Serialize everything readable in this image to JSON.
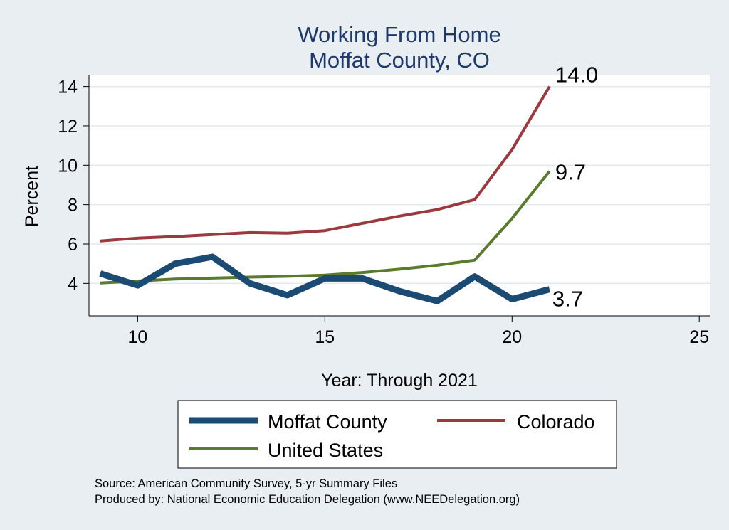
{
  "chart_data": {
    "type": "line",
    "title": [
      "Working From Home",
      "Moffat County, CO"
    ],
    "xlabel": "Year: Through 2021",
    "ylabel": "Percent",
    "xlim": [
      8.7,
      25.3
    ],
    "ylim": [
      2.35,
      14.6
    ],
    "xticks": [
      10,
      15,
      20,
      25
    ],
    "yticks": [
      4,
      6,
      8,
      10,
      12,
      14
    ],
    "grid": true,
    "legend_position": "bottom",
    "series": [
      {
        "name": "Moffat County",
        "color": "#1b4a72",
        "x": [
          9,
          10,
          11,
          12,
          13,
          14,
          15,
          16,
          17,
          18,
          19,
          20,
          21
        ],
        "values": [
          4.5,
          3.9,
          5.0,
          5.35,
          4.0,
          3.4,
          4.25,
          4.25,
          3.6,
          3.1,
          4.35,
          3.2,
          3.7
        ],
        "end_label": "3.7"
      },
      {
        "name": "Colorado",
        "color": "#9b3a3e",
        "x": [
          9,
          10,
          11,
          12,
          13,
          14,
          15,
          16,
          17,
          18,
          19,
          20,
          21
        ],
        "values": [
          6.15,
          6.3,
          6.38,
          6.48,
          6.58,
          6.55,
          6.68,
          7.05,
          7.42,
          7.75,
          8.25,
          10.8,
          14.0
        ],
        "end_label": "14.0"
      },
      {
        "name": "United States",
        "color": "#5a7a2e",
        "x": [
          9,
          10,
          11,
          12,
          13,
          14,
          15,
          16,
          17,
          18,
          19,
          20,
          21
        ],
        "values": [
          4.02,
          4.12,
          4.22,
          4.27,
          4.32,
          4.36,
          4.42,
          4.55,
          4.72,
          4.92,
          5.18,
          7.3,
          9.7
        ],
        "end_label": "9.7"
      }
    ],
    "legend": {
      "entries": [
        {
          "name": "Moffat County",
          "color": "#1b4a72"
        },
        {
          "name": "Colorado",
          "color": "#9b3a3e"
        },
        {
          "name": "United States",
          "color": "#5a7a2e"
        }
      ]
    },
    "notes": [
      "Source: American Community Survey, 5-yr Summary Files",
      "Produced by: National Economic Education Delegation (www.NEEDelegation.org)"
    ]
  }
}
